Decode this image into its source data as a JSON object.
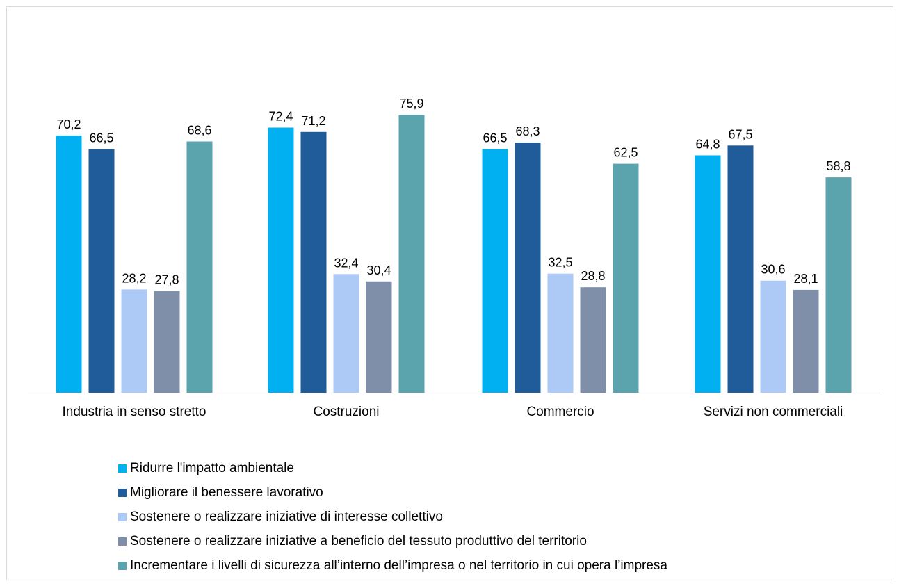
{
  "chart_data": {
    "type": "bar",
    "categories": [
      "Industria in senso stretto",
      "Costruzioni",
      "Commercio",
      "Servizi non commerciali"
    ],
    "series": [
      {
        "name": "Ridurre l'impatto ambientale",
        "color": "#00b0f0",
        "values": [
          70.2,
          72.4,
          66.5,
          64.8
        ],
        "labels": [
          "70,2",
          "72,4",
          "66,5",
          "64,8"
        ]
      },
      {
        "name": "Migliorare il benessere lavorativo",
        "color": "#1f5c99",
        "values": [
          66.5,
          71.2,
          68.3,
          67.5
        ],
        "labels": [
          "66,5",
          "71,2",
          "68,3",
          "67,5"
        ]
      },
      {
        "name": "Sostenere o realizzare iniziative di interesse collettivo",
        "color": "#adc9f5",
        "values": [
          28.2,
          32.4,
          32.5,
          30.6
        ],
        "labels": [
          "28,2",
          "32,4",
          "32,5",
          "30,6"
        ]
      },
      {
        "name": "Sostenere o realizzare iniziative a beneficio del tessuto produttivo del territorio",
        "color": "#7f8ea9",
        "values": [
          27.8,
          30.4,
          28.8,
          28.1
        ],
        "labels": [
          "27,8",
          "30,4",
          "28,8",
          "28,1"
        ]
      },
      {
        "name": "Incrementare i livelli di sicurezza all’interno dell’impresa o nel territorio in cui opera l’impresa",
        "color": "#5ba3ad",
        "values": [
          68.6,
          75.9,
          62.5,
          58.8
        ],
        "labels": [
          "68,6",
          "75,9",
          "62,5",
          "58,8"
        ]
      }
    ],
    "ylim": [
      0,
      80
    ],
    "grid": false,
    "legend_position": "bottom-left"
  }
}
